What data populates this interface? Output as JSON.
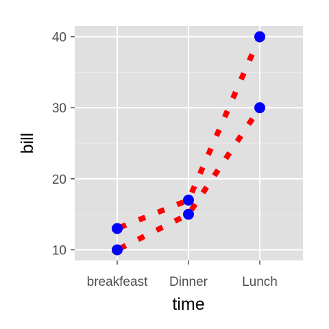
{
  "chart_data": {
    "type": "line",
    "xlabel": "time",
    "ylabel": "bill",
    "categories": [
      "breakfeast",
      "Dinner",
      "Lunch"
    ],
    "yticks": [
      10,
      20,
      30,
      40
    ],
    "ylim": [
      8.5,
      41.5
    ],
    "grid": true,
    "line_style": "dotted",
    "series": [
      {
        "values": [
          10,
          15,
          30
        ]
      },
      {
        "values": [
          13,
          17,
          40
        ]
      }
    ],
    "colors": {
      "panel": "#e0e0e0",
      "grid_major": "#ffffff",
      "grid_minor": "#ebebeb",
      "line": "#ff0000",
      "point": "#0000ff",
      "tick_text": "#4d4d4d",
      "axis_title": "#000000"
    }
  }
}
